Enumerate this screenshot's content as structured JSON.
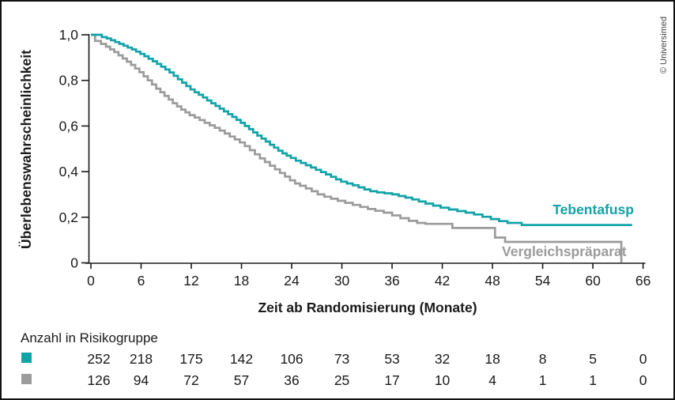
{
  "copyright": "© Universimed",
  "chart_data": {
    "type": "line",
    "subtype": "kaplan-meier-step",
    "title": "",
    "xlabel": "Zeit ab Randomisierung (Monate)",
    "ylabel": "Überlebenswahrscheinlichkeit",
    "xlim": [
      0,
      66
    ],
    "ylim": [
      0,
      1
    ],
    "grid": false,
    "x_ticks": [
      0,
      6,
      12,
      18,
      24,
      30,
      36,
      42,
      48,
      54,
      60,
      66
    ],
    "y_ticks": [
      1.0,
      0.8,
      0.6,
      0.4,
      0.2,
      0
    ],
    "y_tick_labels": [
      "1,0",
      "0,8",
      "0,6",
      "0,4",
      "0,2",
      "0"
    ],
    "axis_color": "#1a1a1a",
    "series": [
      {
        "name": "Tebentafusp",
        "color": "#12a3a8",
        "end_t": 64.7,
        "points": [
          [
            0,
            1.0
          ],
          [
            1.3,
            0.99
          ],
          [
            1.9,
            0.984
          ],
          [
            2.4,
            0.976
          ],
          [
            2.9,
            0.968
          ],
          [
            3.4,
            0.96
          ],
          [
            3.9,
            0.952
          ],
          [
            4.4,
            0.944
          ],
          [
            4.9,
            0.936
          ],
          [
            5.4,
            0.926
          ],
          [
            5.9,
            0.916
          ],
          [
            6.4,
            0.906
          ],
          [
            6.9,
            0.895
          ],
          [
            7.4,
            0.884
          ],
          [
            7.9,
            0.872
          ],
          [
            8.4,
            0.86
          ],
          [
            8.9,
            0.848
          ],
          [
            9.4,
            0.835
          ],
          [
            9.9,
            0.82
          ],
          [
            10.4,
            0.805
          ],
          [
            10.9,
            0.79
          ],
          [
            11.4,
            0.775
          ],
          [
            11.9,
            0.76
          ],
          [
            12.4,
            0.748
          ],
          [
            12.9,
            0.737
          ],
          [
            13.4,
            0.725
          ],
          [
            13.9,
            0.712
          ],
          [
            14.4,
            0.7
          ],
          [
            14.9,
            0.688
          ],
          [
            15.4,
            0.676
          ],
          [
            15.9,
            0.664
          ],
          [
            16.4,
            0.652
          ],
          [
            16.9,
            0.64
          ],
          [
            17.4,
            0.627
          ],
          [
            17.9,
            0.614
          ],
          [
            18.4,
            0.6
          ],
          [
            18.9,
            0.586
          ],
          [
            19.4,
            0.572
          ],
          [
            19.9,
            0.558
          ],
          [
            20.4,
            0.545
          ],
          [
            20.9,
            0.532
          ],
          [
            21.4,
            0.518
          ],
          [
            21.9,
            0.505
          ],
          [
            22.4,
            0.492
          ],
          [
            22.9,
            0.48
          ],
          [
            23.4,
            0.47
          ],
          [
            23.9,
            0.46
          ],
          [
            24.5,
            0.448
          ],
          [
            25.1,
            0.438
          ],
          [
            25.7,
            0.428
          ],
          [
            26.3,
            0.418
          ],
          [
            26.9,
            0.408
          ],
          [
            27.5,
            0.398
          ],
          [
            28.1,
            0.388
          ],
          [
            28.7,
            0.377
          ],
          [
            29.3,
            0.366
          ],
          [
            29.9,
            0.356
          ],
          [
            30.6,
            0.348
          ],
          [
            31.3,
            0.34
          ],
          [
            32,
            0.331
          ],
          [
            32.7,
            0.322
          ],
          [
            33.4,
            0.314
          ],
          [
            34.2,
            0.309
          ],
          [
            35.1,
            0.305
          ],
          [
            36,
            0.3
          ],
          [
            36.8,
            0.293
          ],
          [
            37.6,
            0.286
          ],
          [
            38.4,
            0.278
          ],
          [
            39.2,
            0.269
          ],
          [
            40,
            0.26
          ],
          [
            40.9,
            0.251
          ],
          [
            41.8,
            0.242
          ],
          [
            42.8,
            0.234
          ],
          [
            43.8,
            0.227
          ],
          [
            44.8,
            0.22
          ],
          [
            45.8,
            0.212
          ],
          [
            46.8,
            0.202
          ],
          [
            47.8,
            0.192
          ],
          [
            48.8,
            0.183
          ],
          [
            49.8,
            0.175
          ],
          [
            51.5,
            0.166
          ]
        ]
      },
      {
        "name": "Vergleichspräparat",
        "color": "#9b9b9b",
        "end_t": null,
        "points": [
          [
            0,
            1.0
          ],
          [
            0.5,
            0.973
          ],
          [
            1.2,
            0.96
          ],
          [
            1.8,
            0.948
          ],
          [
            2.3,
            0.936
          ],
          [
            2.8,
            0.924
          ],
          [
            3.3,
            0.91
          ],
          [
            3.8,
            0.896
          ],
          [
            4.3,
            0.882
          ],
          [
            4.8,
            0.868
          ],
          [
            5.3,
            0.852
          ],
          [
            5.8,
            0.836
          ],
          [
            6.3,
            0.818
          ],
          [
            6.8,
            0.8
          ],
          [
            7.3,
            0.782
          ],
          [
            7.8,
            0.764
          ],
          [
            8.3,
            0.748
          ],
          [
            8.8,
            0.732
          ],
          [
            9.3,
            0.716
          ],
          [
            9.8,
            0.7
          ],
          [
            10.3,
            0.686
          ],
          [
            10.8,
            0.672
          ],
          [
            11.3,
            0.66
          ],
          [
            11.8,
            0.648
          ],
          [
            12.4,
            0.637
          ],
          [
            13,
            0.626
          ],
          [
            13.6,
            0.614
          ],
          [
            14.2,
            0.603
          ],
          [
            14.8,
            0.592
          ],
          [
            15.4,
            0.58
          ],
          [
            16,
            0.567
          ],
          [
            16.6,
            0.554
          ],
          [
            17.2,
            0.541
          ],
          [
            17.8,
            0.528
          ],
          [
            18.4,
            0.512
          ],
          [
            19,
            0.494
          ],
          [
            19.6,
            0.476
          ],
          [
            20.2,
            0.458
          ],
          [
            20.8,
            0.442
          ],
          [
            21.4,
            0.426
          ],
          [
            22,
            0.41
          ],
          [
            22.6,
            0.394
          ],
          [
            23.2,
            0.378
          ],
          [
            23.8,
            0.362
          ],
          [
            24.4,
            0.348
          ],
          [
            25,
            0.338
          ],
          [
            25.7,
            0.326
          ],
          [
            26.4,
            0.314
          ],
          [
            27.1,
            0.3
          ],
          [
            27.9,
            0.29
          ],
          [
            28.7,
            0.281
          ],
          [
            29.5,
            0.272
          ],
          [
            30.4,
            0.263
          ],
          [
            31.3,
            0.254
          ],
          [
            32.2,
            0.245
          ],
          [
            33.1,
            0.236
          ],
          [
            34,
            0.228
          ],
          [
            35,
            0.22
          ],
          [
            36,
            0.208
          ],
          [
            37,
            0.196
          ],
          [
            38,
            0.184
          ],
          [
            39,
            0.175
          ],
          [
            40,
            0.171
          ],
          [
            43.2,
            0.153
          ],
          [
            48.3,
            0.111
          ],
          [
            49.5,
            0.092
          ],
          [
            63.4,
            0
          ]
        ]
      }
    ],
    "risk_table": {
      "title": "Anzahl in Risikogruppe",
      "times": [
        0,
        6,
        12,
        18,
        24,
        30,
        36,
        42,
        48,
        54,
        60,
        66
      ],
      "rows": [
        {
          "name": "Tebentafusp",
          "color": "#12a3a8",
          "counts": [
            252,
            218,
            175,
            142,
            106,
            73,
            53,
            32,
            18,
            8,
            5,
            0
          ]
        },
        {
          "name": "Vergleichspräparat",
          "color": "#9b9b9b",
          "counts": [
            126,
            94,
            72,
            57,
            36,
            25,
            17,
            10,
            4,
            1,
            1,
            0
          ]
        }
      ]
    }
  }
}
